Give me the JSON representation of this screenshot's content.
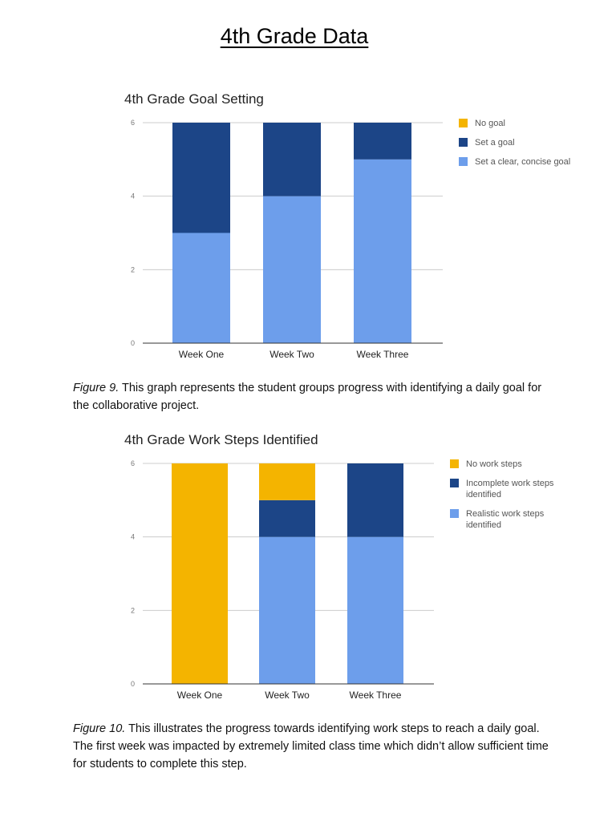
{
  "page": {
    "title": " 4th Grade Data"
  },
  "colors": {
    "no": "#f4b400",
    "incomplete": "#1c4587",
    "realistic": "#6d9eeb"
  },
  "chart_data": [
    {
      "type": "bar",
      "stacked": true,
      "title": "4th Grade Goal Setting",
      "categories": [
        "Week One",
        "Week Two",
        "Week Three"
      ],
      "series": [
        {
          "name": "No goal",
          "values": [
            0,
            0,
            0
          ],
          "color": "#f4b400"
        },
        {
          "name": "Set a goal",
          "values": [
            3,
            2,
            1
          ],
          "color": "#1c4587"
        },
        {
          "name": "Set a clear, concise goal",
          "values": [
            3,
            4,
            5
          ],
          "color": "#6d9eeb"
        }
      ],
      "ylim": [
        0,
        6
      ],
      "yticks": [
        "0",
        "2",
        "4",
        "6"
      ],
      "grid": true,
      "legend": "right"
    },
    {
      "type": "bar",
      "stacked": true,
      "title": "4th Grade Work Steps Identified",
      "categories": [
        "Week One",
        "Week Two",
        "Week Three"
      ],
      "series": [
        {
          "name": "No work steps",
          "values": [
            6,
            1,
            0
          ],
          "color": "#f4b400"
        },
        {
          "name": "Incomplete work steps identified",
          "values": [
            0,
            1,
            2
          ],
          "color": "#1c4587"
        },
        {
          "name": "Realistic work steps identified",
          "values": [
            0,
            4,
            4
          ],
          "color": "#6d9eeb"
        }
      ],
      "ylim": [
        0,
        6
      ],
      "yticks": [
        "0",
        "2",
        "4",
        "6"
      ],
      "grid": true,
      "legend": "right"
    }
  ],
  "captions": [
    {
      "label": "Figure 9.",
      "text": "  This graph represents the student groups progress with identifying a daily goal for the collaborative project."
    },
    {
      "label": "Figure 10.",
      "text": "  This illustrates the progress towards identifying work steps to reach a daily goal.  The first week was impacted by extremely limited class time which didn’t allow sufficient time for students to complete this step."
    }
  ]
}
